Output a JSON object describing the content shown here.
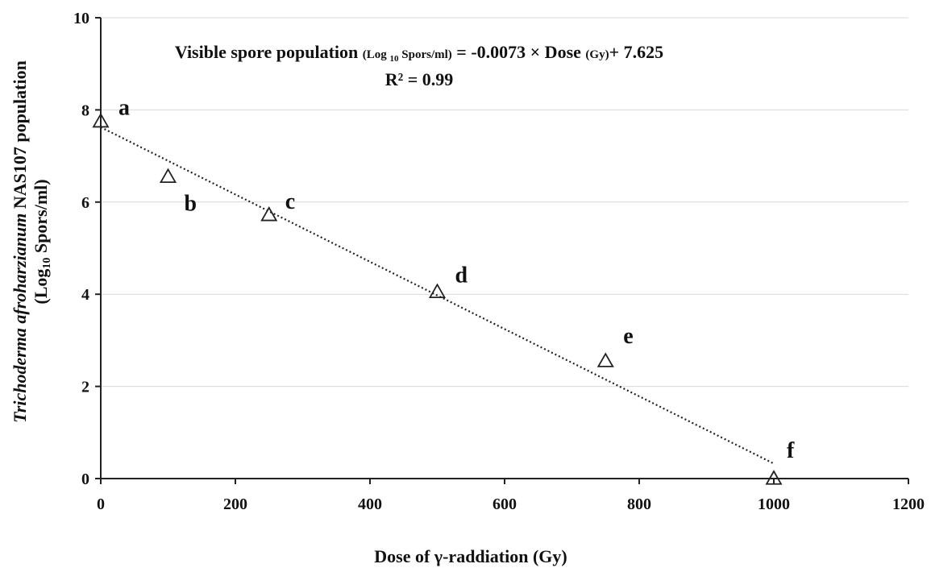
{
  "chart_data": {
    "type": "scatter",
    "xlabel": "Dose of γ-raddiation (Gy)",
    "ylabel_italic": "Trichoderma afroharzianum",
    "ylabel_rest": " NAS107 population",
    "ylabel_line2_a": "(Log",
    "ylabel_line2_sub": "10",
    "ylabel_line2_b": " Spors/ml)",
    "xlim": [
      0,
      1200
    ],
    "ylim": [
      0,
      10
    ],
    "xticks": [
      0,
      200,
      400,
      600,
      800,
      1000,
      1200
    ],
    "yticks": [
      0,
      2,
      4,
      6,
      8,
      10
    ],
    "grid": "horizontal",
    "marker": "open-triangle",
    "points": [
      {
        "x": 0,
        "y": 7.75,
        "label": "a"
      },
      {
        "x": 100,
        "y": 6.55,
        "label": "b"
      },
      {
        "x": 250,
        "y": 5.72,
        "label": "c"
      },
      {
        "x": 500,
        "y": 4.05,
        "label": "d"
      },
      {
        "x": 750,
        "y": 2.55,
        "label": "e"
      },
      {
        "x": 1000,
        "y": 0.0,
        "label": "f"
      }
    ],
    "trendline": {
      "type": "linear",
      "slope": -0.0073,
      "intercept": 7.625,
      "x_range": [
        0,
        1000
      ],
      "style": "dotted"
    },
    "equation": {
      "part1": "Visible spore population ",
      "part2": "(Log ",
      "part2_sub": "10",
      "part3": " Spors/ml)",
      "part4": " = -0.0073 × Dose ",
      "part5": "(Gy)",
      "part6": "+ 7.625",
      "r2": "R² = 0.99"
    }
  }
}
